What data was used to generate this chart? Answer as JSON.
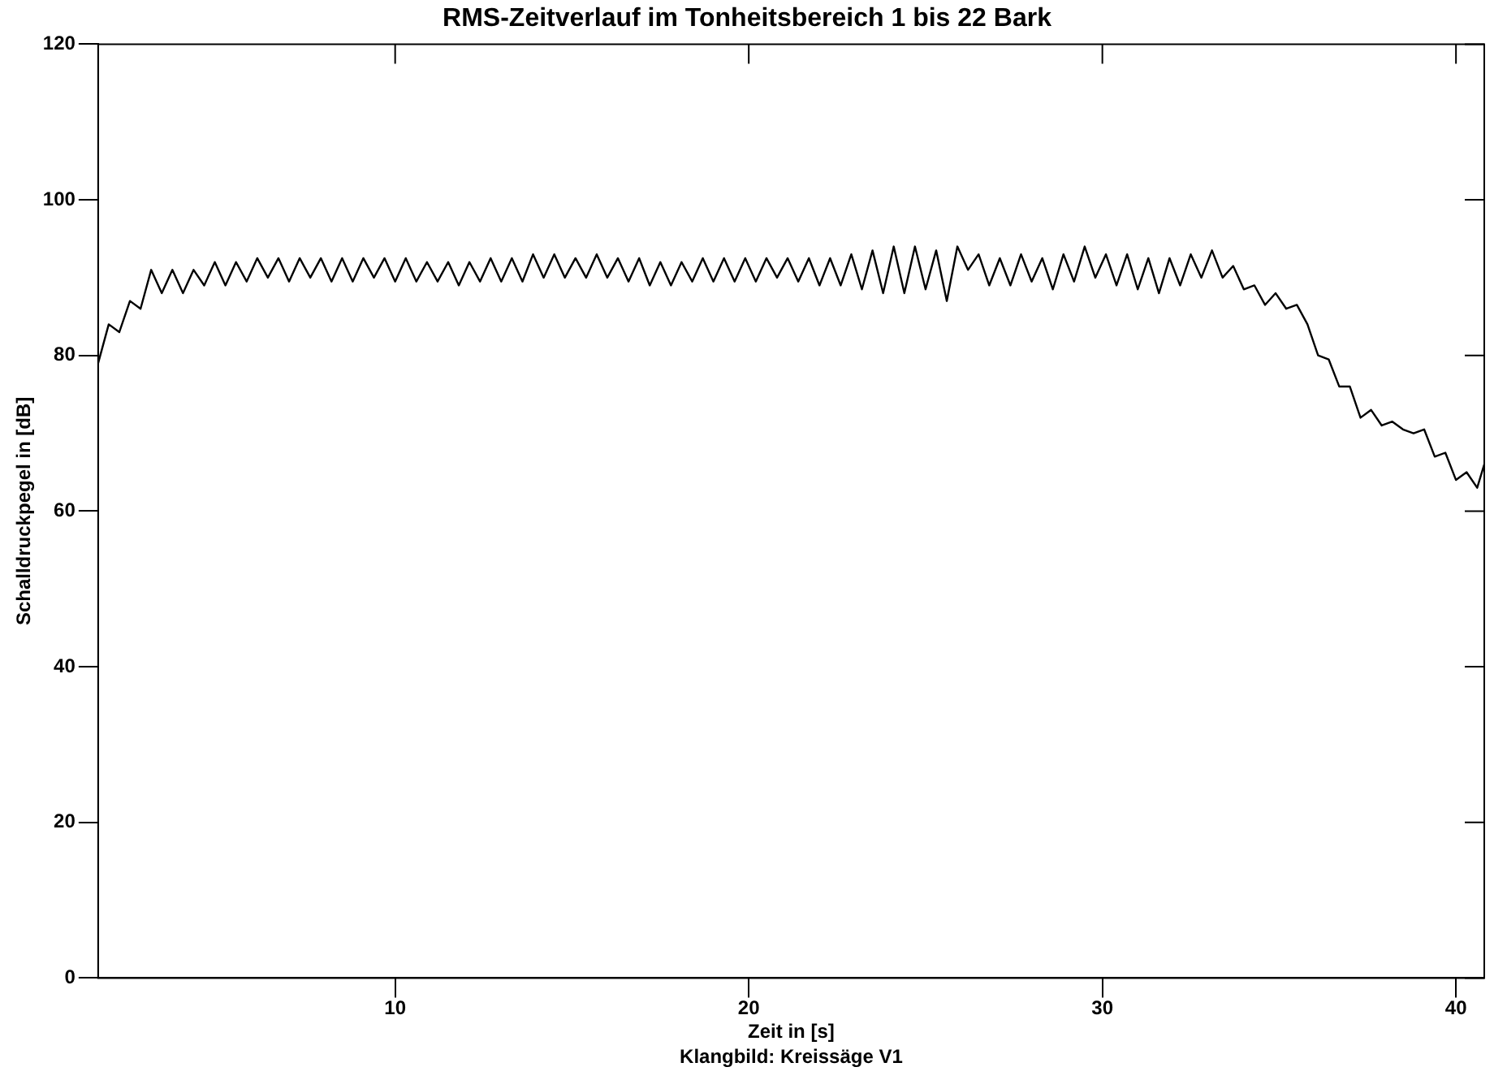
{
  "chart_data": {
    "type": "line",
    "title": "RMS-Zeitverlauf im Tonheitsbereich 1 bis 22 Bark",
    "xlabel": "Zeit in [s]",
    "ylabel": "Schalldruckpegel in [dB]",
    "annotations": [
      "Klangbild: Kreissäge V1"
    ],
    "xlim": [
      1.6,
      40.8
    ],
    "xticks": [
      10,
      20,
      30,
      40
    ],
    "ylim": [
      0,
      120
    ],
    "yticks": [
      0,
      20,
      40,
      60,
      80,
      100,
      120
    ],
    "grid": false,
    "legend": false,
    "marker": "none",
    "line_style": "solid",
    "series": [
      {
        "color": "#000000",
        "x": [
          1.6,
          1.9,
          2.2,
          2.5,
          2.8,
          3.1,
          3.4,
          3.7,
          4.0,
          4.3,
          4.6,
          4.9,
          5.2,
          5.5,
          5.8,
          6.1,
          6.4,
          6.7,
          7.0,
          7.3,
          7.6,
          7.9,
          8.2,
          8.5,
          8.8,
          9.1,
          9.4,
          9.7,
          10.0,
          10.3,
          10.6,
          10.9,
          11.2,
          11.5,
          11.8,
          12.1,
          12.4,
          12.7,
          13.0,
          13.3,
          13.6,
          13.9,
          14.2,
          14.5,
          14.8,
          15.1,
          15.4,
          15.7,
          16.0,
          16.3,
          16.6,
          16.9,
          17.2,
          17.5,
          17.8,
          18.1,
          18.4,
          18.7,
          19.0,
          19.3,
          19.6,
          19.9,
          20.2,
          20.5,
          20.8,
          21.1,
          21.4,
          21.7,
          22.0,
          22.3,
          22.6,
          22.9,
          23.2,
          23.5,
          23.8,
          24.1,
          24.4,
          24.7,
          25.0,
          25.3,
          25.6,
          25.9,
          26.2,
          26.5,
          26.8,
          27.1,
          27.4,
          27.7,
          28.0,
          28.3,
          28.6,
          28.9,
          29.2,
          29.5,
          29.8,
          30.1,
          30.4,
          30.7,
          31.0,
          31.3,
          31.6,
          31.9,
          32.2,
          32.5,
          32.8,
          33.1,
          33.4,
          33.7,
          34.0,
          34.3,
          34.6,
          34.9,
          35.2,
          35.5,
          35.8,
          36.1,
          36.4,
          36.7,
          37.0,
          37.3,
          37.6,
          37.9,
          38.2,
          38.5,
          38.8,
          39.1,
          39.4,
          39.7,
          40.0,
          40.3,
          40.6,
          40.8
        ],
        "values": [
          79,
          84,
          83,
          87,
          86,
          91,
          88,
          91,
          88,
          91,
          89,
          92,
          89,
          92,
          89.5,
          92.5,
          90,
          92.5,
          89.5,
          92.5,
          90,
          92.5,
          89.5,
          92.5,
          89.5,
          92.5,
          90,
          92.5,
          89.5,
          92.5,
          89.5,
          92,
          89.5,
          92,
          89,
          92,
          89.5,
          92.5,
          89.5,
          92.5,
          89.5,
          93,
          90,
          93,
          90,
          92.5,
          90,
          93,
          90,
          92.5,
          89.5,
          92.5,
          89,
          92,
          89,
          92,
          89.5,
          92.5,
          89.5,
          92.5,
          89.5,
          92.5,
          89.5,
          92.5,
          90,
          92.5,
          89.5,
          92.5,
          89,
          92.5,
          89,
          93,
          88.5,
          93.5,
          88,
          94,
          88,
          94,
          88.5,
          93.5,
          87,
          94,
          91,
          93,
          89,
          92.5,
          89,
          93,
          89.5,
          92.5,
          88.5,
          93,
          89.5,
          94,
          90,
          93,
          89,
          93,
          88.5,
          92.5,
          88,
          92.5,
          89,
          93,
          90,
          93.5,
          90,
          91.5,
          88.5,
          89,
          86.5,
          88,
          86,
          86.5,
          84,
          80,
          79.5,
          76,
          76,
          72,
          73,
          71,
          71.5,
          70.5,
          70,
          70.5,
          67,
          67.5,
          64,
          65,
          63,
          66
        ]
      }
    ]
  }
}
